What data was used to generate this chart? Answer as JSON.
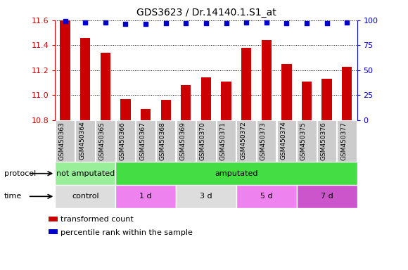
{
  "title": "GDS3623 / Dr.14140.1.S1_at",
  "samples": [
    "GSM450363",
    "GSM450364",
    "GSM450365",
    "GSM450366",
    "GSM450367",
    "GSM450368",
    "GSM450369",
    "GSM450370",
    "GSM450371",
    "GSM450372",
    "GSM450373",
    "GSM450374",
    "GSM450375",
    "GSM450376",
    "GSM450377"
  ],
  "transformed_count": [
    11.6,
    11.46,
    11.34,
    10.97,
    10.89,
    10.96,
    11.08,
    11.14,
    11.11,
    11.38,
    11.44,
    11.25,
    11.11,
    11.13,
    11.23
  ],
  "percentile_rank": [
    99,
    98,
    98,
    96,
    96,
    97,
    97,
    97,
    97,
    98,
    98,
    97,
    97,
    97,
    98
  ],
  "ylim_left": [
    10.8,
    11.6
  ],
  "ylim_right": [
    0,
    100
  ],
  "yticks_left": [
    10.8,
    11.0,
    11.2,
    11.4,
    11.6
  ],
  "yticks_right": [
    0,
    25,
    50,
    75,
    100
  ],
  "bar_color": "#cc0000",
  "dot_color": "#0000cc",
  "protocol_groups": [
    {
      "label": "not amputated",
      "start": 0,
      "end": 3,
      "color": "#99ee99"
    },
    {
      "label": "amputated",
      "start": 3,
      "end": 15,
      "color": "#44dd44"
    }
  ],
  "time_groups": [
    {
      "label": "control",
      "start": 0,
      "end": 3,
      "color": "#dddddd"
    },
    {
      "label": "1 d",
      "start": 3,
      "end": 6,
      "color": "#ee82ee"
    },
    {
      "label": "3 d",
      "start": 6,
      "end": 9,
      "color": "#dddddd"
    },
    {
      "label": "5 d",
      "start": 9,
      "end": 12,
      "color": "#ee82ee"
    },
    {
      "label": "7 d",
      "start": 12,
      "end": 15,
      "color": "#cc55cc"
    }
  ],
  "legend_items": [
    {
      "color": "#cc0000",
      "label": "transformed count"
    },
    {
      "color": "#0000cc",
      "label": "percentile rank within the sample"
    }
  ],
  "protocol_label": "protocol",
  "time_label": "time",
  "left_color": "#cc0000",
  "right_color": "#0000cc",
  "xtick_bg_color": "#cccccc",
  "bg_color": "#ffffff",
  "bar_width": 0.5
}
